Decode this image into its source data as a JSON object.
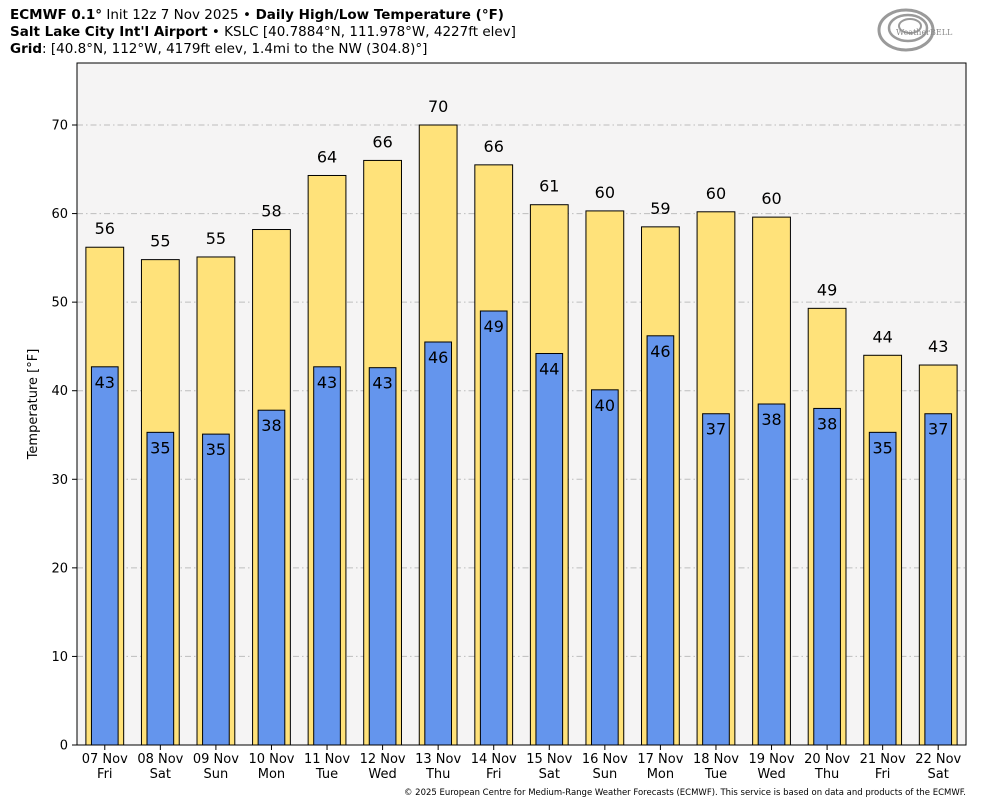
{
  "header": {
    "line1": {
      "model": "ECMWF 0.1°",
      "init": " Init 12z 7 Nov 2025 ",
      "sep": "•",
      "title": " Daily High/Low Temperature (°F)"
    },
    "line2": {
      "station": "Salt Lake City Int'l Airport",
      "sep": " • ",
      "detail": "KSLC [40.7884°N, 111.978°W, 4227ft elev]"
    },
    "line3": {
      "label": "Grid",
      "detail": ": [40.8°N, 112°W, 4179ft elev, 1.4mi to the NW (304.8)°]"
    }
  },
  "logo": {
    "text": "WeatherBELL",
    "icon": "swirl-logo-icon"
  },
  "footer": {
    "text": "© 2025 European Centre for Medium-Range Weather Forecasts (ECMWF). This service is based on data and products of the ECMWF."
  },
  "chart_data": {
    "type": "bar",
    "ylabel": "Temperature [°F]",
    "xlabel": "",
    "ylim": [
      0,
      77
    ],
    "yticks": [
      0,
      10,
      20,
      30,
      40,
      50,
      60,
      70
    ],
    "grid": true,
    "categories": [
      {
        "date": "07 Nov",
        "day": "Fri"
      },
      {
        "date": "08 Nov",
        "day": "Sat"
      },
      {
        "date": "09 Nov",
        "day": "Sun"
      },
      {
        "date": "10 Nov",
        "day": "Mon"
      },
      {
        "date": "11 Nov",
        "day": "Tue"
      },
      {
        "date": "12 Nov",
        "day": "Wed"
      },
      {
        "date": "13 Nov",
        "day": "Thu"
      },
      {
        "date": "14 Nov",
        "day": "Fri"
      },
      {
        "date": "15 Nov",
        "day": "Sat"
      },
      {
        "date": "16 Nov",
        "day": "Sun"
      },
      {
        "date": "17 Nov",
        "day": "Mon"
      },
      {
        "date": "18 Nov",
        "day": "Tue"
      },
      {
        "date": "19 Nov",
        "day": "Wed"
      },
      {
        "date": "20 Nov",
        "day": "Thu"
      },
      {
        "date": "21 Nov",
        "day": "Fri"
      },
      {
        "date": "22 Nov",
        "day": "Sat"
      }
    ],
    "series": [
      {
        "color": "#ffe27a",
        "values": [
          56.2,
          54.8,
          55.1,
          58.2,
          64.3,
          66.0,
          70.0,
          65.5,
          61.0,
          60.3,
          58.5,
          60.2,
          59.6,
          49.3,
          44.0,
          42.9
        ],
        "labels": [
          "56",
          "55",
          "55",
          "58",
          "64",
          "66",
          "70",
          "66",
          "61",
          "60",
          "59",
          "60",
          "60",
          "49",
          "44",
          "43"
        ]
      },
      {
        "color": "#6495ed",
        "values": [
          42.7,
          35.3,
          35.1,
          37.8,
          42.7,
          42.6,
          45.5,
          49.0,
          44.2,
          40.1,
          46.2,
          37.4,
          38.5,
          38.0,
          35.3,
          37.4
        ],
        "labels": [
          "43",
          "35",
          "35",
          "38",
          "43",
          "43",
          "46",
          "49",
          "44",
          "40",
          "46",
          "37",
          "38",
          "38",
          "35",
          "37"
        ]
      }
    ],
    "colors": {
      "plot_bg": "#f5f4f4",
      "grid": "#bdbdbd",
      "outline": "#000000"
    }
  }
}
